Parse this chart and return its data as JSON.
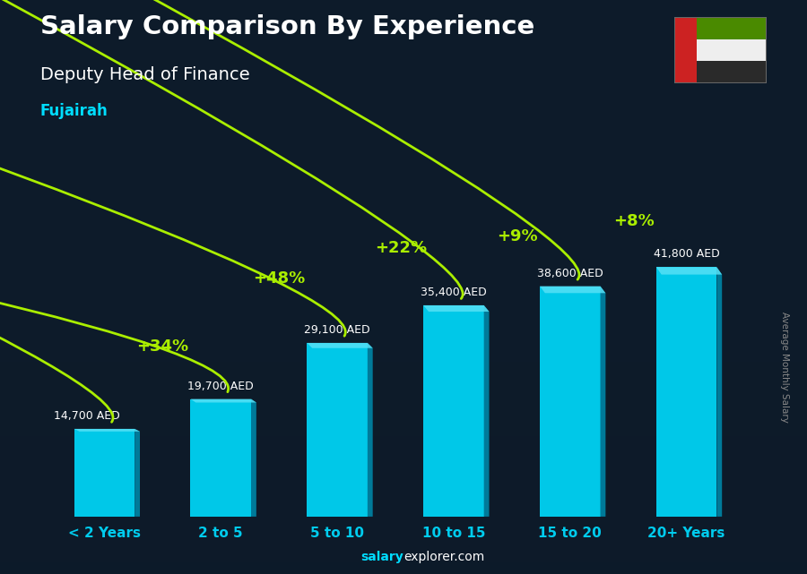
{
  "title": "Salary Comparison By Experience",
  "subtitle": "Deputy Head of Finance",
  "location": "Fujairah",
  "ylabel": "Average Monthly Salary",
  "categories": [
    "< 2 Years",
    "2 to 5",
    "5 to 10",
    "10 to 15",
    "15 to 20",
    "20+ Years"
  ],
  "values": [
    14700,
    19700,
    29100,
    35400,
    38600,
    41800
  ],
  "pct_changes": [
    "+34%",
    "+48%",
    "+22%",
    "+9%",
    "+8%"
  ],
  "bar_color_light": "#00C8E8",
  "bar_color_mid": "#00AECC",
  "bar_color_dark": "#007A99",
  "bar_top_color": "#55E0F5",
  "title_color": "#FFFFFF",
  "subtitle_color": "#FFFFFF",
  "location_color": "#00DDFF",
  "pct_color": "#AAEE00",
  "value_color": "#FFFFFF",
  "bg_dark": "#0D1B2A",
  "bg_mid": "#162535",
  "footer_salary_color": "#00DDFF",
  "footer_explorer_color": "#FFFFFF",
  "ylabel_color": "#888888",
  "xtick_color": "#00CCEE",
  "arrow_color": "#AAEE00"
}
